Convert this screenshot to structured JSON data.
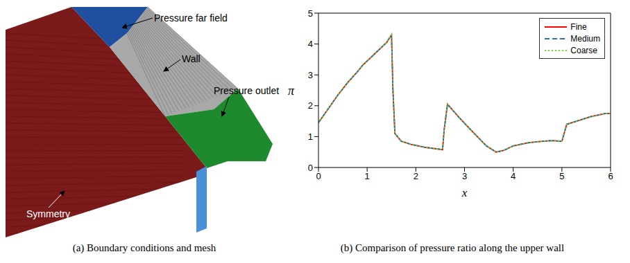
{
  "panel_a": {
    "caption": "(a) Boundary conditions and mesh",
    "labels": {
      "far_field": "Pressure far field",
      "wall": "Wall",
      "outlet": "Pressure outlet",
      "symmetry": "Symmetry"
    }
  },
  "chart_data": {
    "type": "line",
    "caption": "(b) Comparison of pressure ratio along the upper wall",
    "x_label": "x",
    "y_label": "π",
    "xlim": [
      0,
      6
    ],
    "ylim": [
      0,
      5
    ],
    "xticks": [
      0,
      1,
      2,
      3,
      4,
      5,
      6
    ],
    "yticks": [
      0,
      1,
      2,
      3,
      4,
      5
    ],
    "grid": false,
    "legend": "upper right",
    "x": [
      0,
      0.2,
      0.4,
      0.6,
      0.8,
      0.9,
      1.0,
      1.2,
      1.4,
      1.5,
      1.53,
      1.57,
      1.7,
      1.9,
      2.2,
      2.55,
      2.58,
      2.65,
      2.9,
      3.2,
      3.45,
      3.65,
      3.8,
      4.0,
      4.3,
      4.6,
      4.8,
      5.0,
      5.1,
      5.3,
      5.6,
      5.9,
      6.0
    ],
    "series": [
      {
        "name": "Fine",
        "color": "#ff0000",
        "line_style": "solid",
        "values": [
          1.45,
          1.9,
          2.35,
          2.75,
          3.1,
          3.3,
          3.45,
          3.75,
          4.05,
          4.3,
          2.5,
          1.1,
          0.85,
          0.75,
          0.65,
          0.58,
          1.2,
          2.05,
          1.6,
          1.1,
          0.7,
          0.5,
          0.55,
          0.7,
          0.8,
          0.85,
          0.87,
          0.85,
          1.4,
          1.5,
          1.65,
          1.75,
          1.75
        ]
      },
      {
        "name": "Medium",
        "color": "#2a6db5",
        "line_style": "dashed",
        "values": [
          1.45,
          1.9,
          2.35,
          2.75,
          3.1,
          3.3,
          3.45,
          3.75,
          4.05,
          4.3,
          2.5,
          1.1,
          0.85,
          0.75,
          0.65,
          0.58,
          1.2,
          2.05,
          1.6,
          1.1,
          0.7,
          0.5,
          0.55,
          0.7,
          0.8,
          0.85,
          0.87,
          0.85,
          1.4,
          1.5,
          1.65,
          1.75,
          1.75
        ]
      },
      {
        "name": "Coarse",
        "color": "#66dd22",
        "line_style": "dotted",
        "values": [
          1.45,
          1.9,
          2.35,
          2.75,
          3.1,
          3.3,
          3.45,
          3.75,
          4.05,
          4.3,
          2.5,
          1.1,
          0.85,
          0.75,
          0.65,
          0.58,
          1.2,
          2.05,
          1.6,
          1.1,
          0.7,
          0.5,
          0.55,
          0.7,
          0.8,
          0.85,
          0.87,
          0.85,
          1.4,
          1.5,
          1.65,
          1.75,
          1.75
        ]
      }
    ]
  }
}
